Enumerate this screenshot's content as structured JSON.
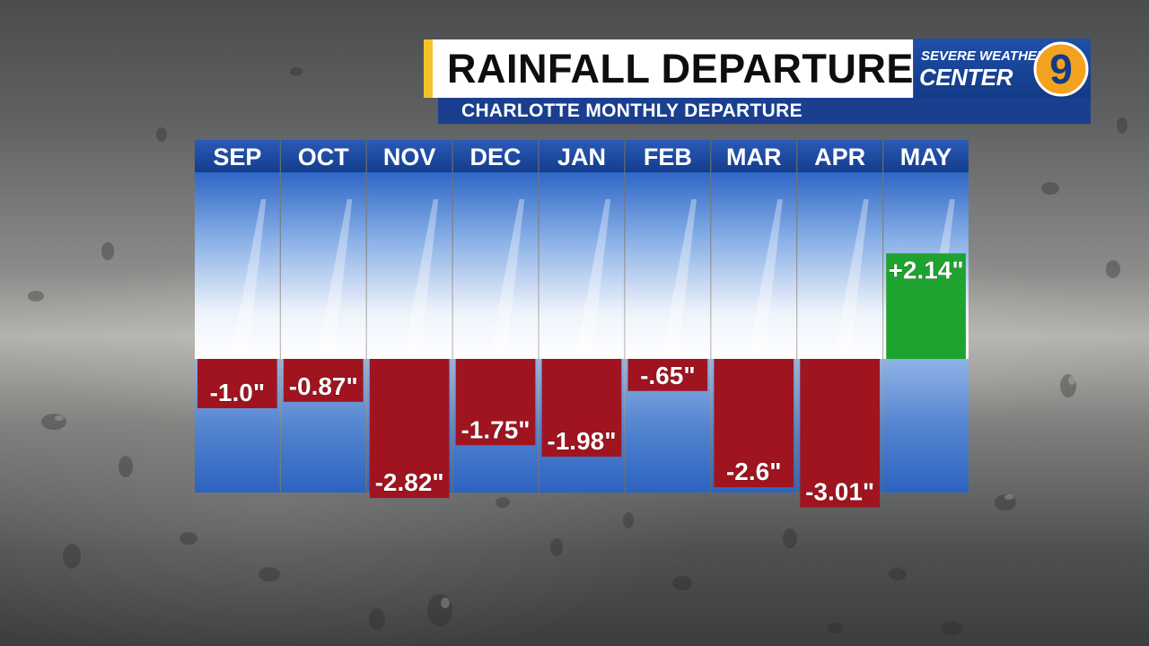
{
  "header": {
    "title": "RAINFALL DEPARTURE",
    "subtitle": "CHARLOTTE MONTHLY DEPARTURE"
  },
  "logo": {
    "line1": "SEVERE WEATHER",
    "line2": "CENTER",
    "number": "9",
    "accent_color": "#f3a21f"
  },
  "colors": {
    "deficit": "#a0141f",
    "surplus": "#1fa32f",
    "header_blue": "#1a3f8f",
    "title_accent": "#f3c32a"
  },
  "chart_data": {
    "type": "bar",
    "title": "RAINFALL DEPARTURE",
    "subtitle": "CHARLOTTE MONTHLY DEPARTURE",
    "categories": [
      "SEP",
      "OCT",
      "NOV",
      "DEC",
      "JAN",
      "FEB",
      "MAR",
      "APR",
      "MAY"
    ],
    "values": [
      -1.0,
      -0.87,
      -2.82,
      -1.75,
      -1.98,
      -0.65,
      -2.6,
      -3.01,
      2.14
    ],
    "labels": [
      "-1.0\"",
      "-0.87\"",
      "-2.82\"",
      "-1.75\"",
      "-1.98\"",
      "-.65\"",
      "-2.6\"",
      "-3.01\"",
      "+2.14\""
    ],
    "units": "inches",
    "ylim": [
      -3.01,
      2.14
    ],
    "grid": false,
    "legend": "none"
  }
}
